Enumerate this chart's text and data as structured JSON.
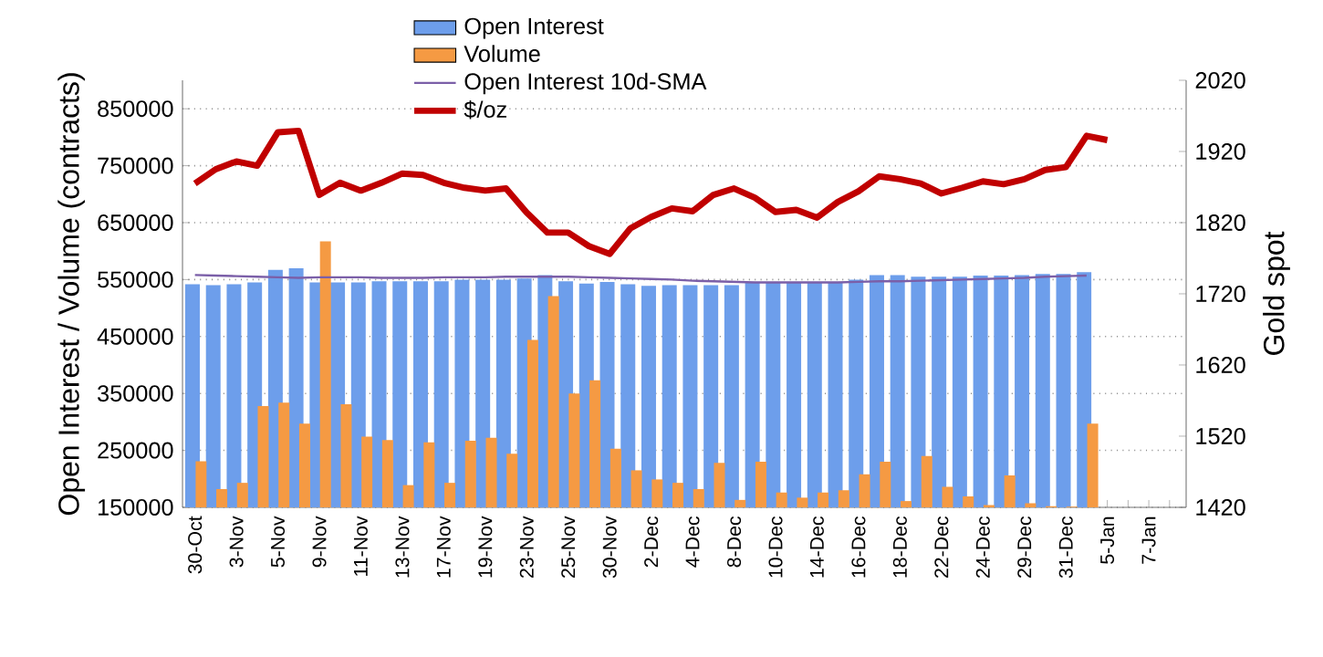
{
  "chart_data": {
    "type": "bar",
    "ylabel": "Open Interest / Volume (contracts)",
    "y2label": "Gold spot",
    "categories": [
      "30-Oct",
      null,
      "3-Nov",
      null,
      "5-Nov",
      null,
      "9-Nov",
      null,
      "11-Nov",
      null,
      "13-Nov",
      null,
      "17-Nov",
      null,
      "19-Nov",
      null,
      "23-Nov",
      null,
      "25-Nov",
      null,
      "30-Nov",
      null,
      "2-Dec",
      null,
      "4-Dec",
      null,
      "8-Dec",
      null,
      "10-Dec",
      null,
      "14-Dec",
      null,
      "16-Dec",
      null,
      "18-Dec",
      null,
      "22-Dec",
      null,
      "24-Dec",
      null,
      "29-Dec",
      null,
      "31-Dec",
      null,
      "5-Jan",
      null,
      "7-Jan",
      null
    ],
    "series": [
      {
        "name": "Open Interest",
        "color": "#6d9eeb",
        "values": [
          542000,
          540000,
          542000,
          545000,
          567000,
          570000,
          545000,
          545000,
          545000,
          547000,
          547000,
          547000,
          547000,
          550000,
          550000,
          550000,
          552000,
          558000,
          547000,
          543000,
          546000,
          542000,
          539000,
          540000,
          540000,
          540000,
          540000,
          545000,
          545000,
          545000,
          545000,
          545000,
          550000,
          558000,
          558000,
          555000,
          555000,
          555000,
          557000,
          557000,
          558000,
          560000,
          560000,
          563000,
          null,
          null,
          null,
          null
        ]
      },
      {
        "name": "Volume",
        "color": "#f59a43",
        "values": [
          231000,
          182000,
          193000,
          328000,
          334000,
          297000,
          617000,
          331000,
          274000,
          268000,
          189000,
          264000,
          193000,
          267000,
          272000,
          244000,
          444000,
          521000,
          350000,
          373000,
          253000,
          215000,
          199000,
          193000,
          182000,
          228000,
          163000,
          230000,
          176000,
          167000,
          176000,
          180000,
          208000,
          230000,
          161000,
          240000,
          186000,
          169000,
          154000,
          206000,
          157000,
          152000,
          151000,
          297000,
          null,
          null,
          null,
          null
        ]
      },
      {
        "name": "Open Interest 10d-SMA",
        "type": "line",
        "color": "#7b5fa8",
        "values": [
          558000,
          557000,
          556000,
          555000,
          554000,
          553000,
          554000,
          554000,
          554000,
          553000,
          553000,
          553000,
          554000,
          554000,
          554000,
          555000,
          555000,
          555000,
          555000,
          554000,
          553000,
          552000,
          551000,
          550000,
          548000,
          547000,
          546000,
          545000,
          545000,
          545000,
          545000,
          545000,
          546000,
          547000,
          547000,
          548000,
          549000,
          550000,
          551000,
          552000,
          553000,
          555000,
          556000,
          557000,
          null,
          null,
          null,
          null
        ]
      },
      {
        "name": "$/oz",
        "type": "line",
        "axis": "y2",
        "color": "#c00000",
        "values": [
          1875,
          1895,
          1906,
          1900,
          1947,
          1949,
          1859,
          1876,
          1865,
          1876,
          1889,
          1887,
          1876,
          1869,
          1865,
          1868,
          1834,
          1806,
          1806,
          1787,
          1776,
          1812,
          1828,
          1840,
          1836,
          1859,
          1868,
          1855,
          1835,
          1838,
          1827,
          1849,
          1864,
          1885,
          1881,
          1875,
          1861,
          1869,
          1878,
          1874,
          1881,
          1894,
          1898,
          1942,
          1936,
          null,
          null,
          null
        ]
      }
    ],
    "ylim": [
      150000,
      900000
    ],
    "yticks": [
      150000,
      250000,
      350000,
      450000,
      550000,
      650000,
      750000,
      850000
    ],
    "y2lim": [
      1420,
      2020
    ],
    "y2ticks": [
      1420,
      1520,
      1620,
      1720,
      1820,
      1920,
      2020
    ],
    "grid": "y",
    "legend": "top"
  }
}
